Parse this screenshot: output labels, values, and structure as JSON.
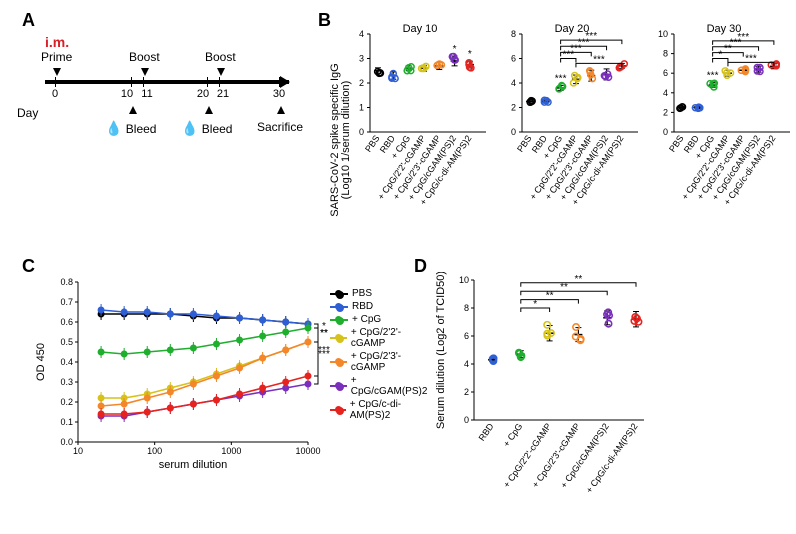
{
  "groups": [
    "PBS",
    "RBD",
    "+ CpG",
    "+ CpG/2'2'-cGAMP",
    "+ CpG/2'3'-cGAMP",
    "+ CpG/cGAM(PS)2",
    "+ CpG/c-di-AM(PS)2"
  ],
  "colors": {
    "PBS": "#000000",
    "RBD": "#2f5fd4",
    "+ CpG": "#1fae2e",
    "+ CpG/2'2'-cGAMP": "#d6c21a",
    "+ CpG/2'3'-cGAMP": "#f4872a",
    "+ CpG/cGAM(PS)2": "#7a2fbd",
    "+ CpG/c-di-AM(PS)2": "#e6231f"
  },
  "panelA": {
    "im_label": "i.m.",
    "top_labels": [
      "Prime",
      "Boost",
      "Boost"
    ],
    "day_marks": [
      0,
      10,
      11,
      20,
      21,
      30
    ],
    "day_word": "Day",
    "bottom_labels": [
      {
        "x": 10.5,
        "text": "Bleed",
        "drop": true
      },
      {
        "x": 20.5,
        "text": "Bleed",
        "drop": true
      },
      {
        "x": 30,
        "text": "Sacrifice",
        "drop": false
      }
    ]
  },
  "panelB": {
    "ylabel": "SARS-CoV-2 spike specific IgG\n(Log10 1/serum dilution)",
    "xlabel_rotate": -55,
    "marker_r": 3.0,
    "err_cap": 3,
    "err_color": "#000000",
    "charts": [
      {
        "title": "Day 10",
        "ylim": [
          0,
          4
        ],
        "ystep": 1,
        "means": [
          2.5,
          2.3,
          2.6,
          2.6,
          2.7,
          2.9,
          2.75
        ],
        "sem": [
          0.12,
          0.15,
          0.1,
          0.12,
          0.15,
          0.2,
          0.14
        ],
        "sig_simple": [
          null,
          null,
          null,
          "*",
          "*",
          "*",
          "**",
          "*"
        ],
        "sig_simple_over": [
          3,
          4,
          5,
          6,
          7
        ]
      },
      {
        "title": "Day 20",
        "ylim": [
          0,
          8
        ],
        "ystep": 2,
        "means": [
          2.5,
          2.5,
          3.6,
          4.3,
          4.6,
          4.7,
          5.4
        ],
        "sem": [
          0.12,
          0.1,
          0.2,
          0.35,
          0.45,
          0.45,
          0.2
        ],
        "sig_simple_over": [
          3
        ],
        "sig_simple": [
          "***"
        ],
        "brackets": [
          {
            "a": 3,
            "b": 4,
            "h": 6.0,
            "lab": "***"
          },
          {
            "a": 3,
            "b": 5,
            "h": 6.5,
            "lab": "***"
          },
          {
            "a": 3,
            "b": 6,
            "h": 7.0,
            "lab": "***"
          },
          {
            "a": 3,
            "b": 7,
            "h": 7.5,
            "lab": "***"
          },
          {
            "a": 4,
            "b": 7,
            "h": 5.6,
            "lab": "***"
          }
        ]
      },
      {
        "title": "Day 30",
        "ylim": [
          0,
          10
        ],
        "ystep": 2,
        "means": [
          2.5,
          2.5,
          4.8,
          6.0,
          6.3,
          6.4,
          6.7
        ],
        "sem": [
          0.12,
          0.1,
          0.25,
          0.3,
          0.3,
          0.3,
          0.25
        ],
        "sig_simple_over": [
          3
        ],
        "sig_simple": [
          "***"
        ],
        "brackets": [
          {
            "a": 3,
            "b": 4,
            "h": 7.5,
            "lab": "*"
          },
          {
            "a": 3,
            "b": 5,
            "h": 8.1,
            "lab": "**"
          },
          {
            "a": 3,
            "b": 6,
            "h": 8.7,
            "lab": "***"
          },
          {
            "a": 3,
            "b": 7,
            "h": 9.3,
            "lab": "***"
          },
          {
            "a": 4,
            "b": 7,
            "h": 7.1,
            "lab": "***"
          }
        ]
      }
    ]
  },
  "panelC": {
    "ylabel": "OD 450",
    "xlabel": "serum dilution",
    "xlog": true,
    "xlim": [
      10,
      10000
    ],
    "xticks": [
      10,
      100,
      1000,
      10000
    ],
    "ylim": [
      0.0,
      0.8
    ],
    "ystep": 0.1,
    "marker_r": 3.0,
    "line_w": 1.6,
    "dilutions": [
      20,
      40,
      80,
      160,
      320,
      640,
      1280,
      2560,
      5120,
      10000
    ],
    "series": {
      "PBS": [
        0.64,
        0.64,
        0.64,
        0.64,
        0.63,
        0.62,
        0.62,
        0.61,
        0.6,
        0.59
      ],
      "RBD": [
        0.66,
        0.65,
        0.65,
        0.64,
        0.64,
        0.63,
        0.62,
        0.61,
        0.6,
        0.59
      ],
      "+ CpG": [
        0.45,
        0.44,
        0.45,
        0.46,
        0.47,
        0.49,
        0.51,
        0.53,
        0.55,
        0.57
      ],
      "+ CpG/2'2'-cGAMP": [
        0.22,
        0.22,
        0.24,
        0.27,
        0.3,
        0.34,
        0.38,
        0.42,
        0.46,
        0.5
      ],
      "+ CpG/2'3'-cGAMP": [
        0.18,
        0.19,
        0.22,
        0.25,
        0.29,
        0.33,
        0.37,
        0.42,
        0.46,
        0.5
      ],
      "+ CpG/cGAM(PS)2": [
        0.13,
        0.13,
        0.15,
        0.17,
        0.19,
        0.21,
        0.23,
        0.25,
        0.27,
        0.29
      ],
      "+ CpG/c-di-AM(PS)2": [
        0.14,
        0.14,
        0.15,
        0.17,
        0.19,
        0.21,
        0.24,
        0.27,
        0.3,
        0.33
      ]
    },
    "sem": 0.03,
    "right_sig": [
      {
        "to": "+ CpG",
        "lab": "*"
      },
      {
        "to": "+ CpG/2'2'-cGAMP",
        "lab": "**"
      },
      {
        "to": "+ CpG/2'3'-cGAMP",
        "lab": "**"
      },
      {
        "to": "+ CpG/cGAM(PS)2",
        "lab": "***"
      },
      {
        "to": "+ CpG/c-di-AM(PS)2",
        "lab": "***"
      }
    ]
  },
  "panelD": {
    "ylabel": "Serum dilution (Log2 of TCID50)",
    "ylim": [
      0,
      10
    ],
    "ystep": 2,
    "groups_used": [
      "RBD",
      "+ CpG",
      "+ CpG/2'2'-cGAMP",
      "+ CpG/2'3'-cGAMP",
      "+ CpG/cGAM(PS)2",
      "+ CpG/c-di-AM(PS)2"
    ],
    "means": [
      4.3,
      4.7,
      6.2,
      6.1,
      7.3,
      7.2
    ],
    "sem": [
      0.1,
      0.25,
      0.55,
      0.5,
      0.5,
      0.55
    ],
    "brackets": [
      {
        "a": 2,
        "b": 3,
        "h": 8.0,
        "lab": "*"
      },
      {
        "a": 2,
        "b": 4,
        "h": 8.6,
        "lab": "**"
      },
      {
        "a": 2,
        "b": 5,
        "h": 9.2,
        "lab": "**"
      },
      {
        "a": 2,
        "b": 6,
        "h": 9.8,
        "lab": "**"
      }
    ]
  }
}
